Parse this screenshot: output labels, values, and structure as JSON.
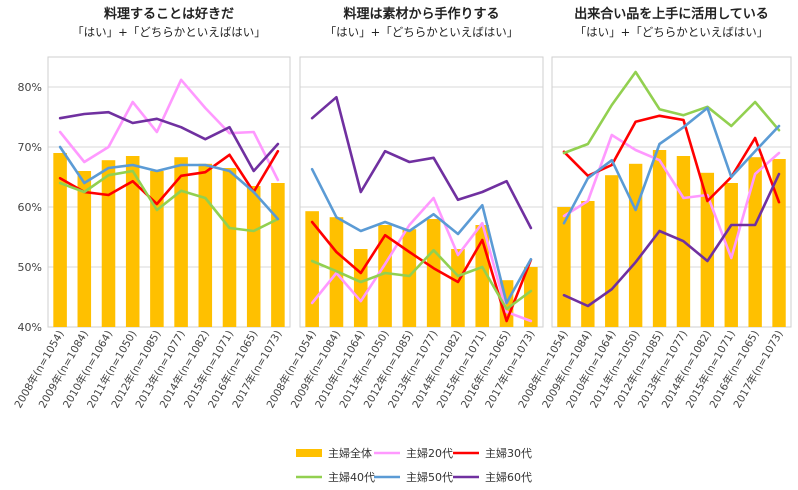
{
  "categories": [
    "2008年(n=1054)",
    "2009年(n=1084)",
    "2010年(n=1064)",
    "2011年(n=1050)",
    "2012年(n=1085)",
    "2013年(n=1077)",
    "2014年(n=1082)",
    "2015年(n=1071)",
    "2016年(n=1065)",
    "2017年(n=1073)"
  ],
  "y_ticks": [
    "40%",
    "50%",
    "60%",
    "70%",
    "80%"
  ],
  "colors": {
    "主婦全体": "#FFC000",
    "主婦20代": "#FF99FF",
    "主婦30代": "#FF0000",
    "主婦40代": "#92D050",
    "主婦50代": "#5B9BD5",
    "主婦60代": "#7030A0"
  },
  "legend": [
    "主婦全体",
    "主婦20代",
    "主婦30代",
    "主婦40代",
    "主婦50代",
    "主婦60代"
  ],
  "chart_data": [
    {
      "type": "bar+line",
      "title": "料理することは好きだ",
      "subtitle": "「はい」+「どちらかといえばはい」",
      "ylim": [
        40,
        85
      ],
      "series": [
        {
          "name": "主婦全体",
          "kind": "bar",
          "values": [
            69.0,
            66.0,
            67.8,
            68.5,
            66.0,
            68.3,
            67.2,
            66.5,
            63.5,
            64.0
          ]
        },
        {
          "name": "主婦20代",
          "kind": "line",
          "values": [
            72.5,
            67.5,
            70.0,
            77.5,
            72.5,
            81.2,
            76.5,
            72.3,
            72.5,
            64.5
          ]
        },
        {
          "name": "主婦30代",
          "kind": "line",
          "values": [
            64.8,
            62.5,
            62.0,
            64.3,
            60.5,
            65.2,
            65.8,
            68.7,
            62.5,
            69.3
          ]
        },
        {
          "name": "主婦40代",
          "kind": "line",
          "values": [
            64.0,
            62.5,
            65.3,
            66.0,
            59.5,
            62.7,
            61.5,
            56.5,
            56.0,
            58.0
          ]
        },
        {
          "name": "主婦50代",
          "kind": "line",
          "values": [
            70.0,
            64.0,
            66.5,
            67.0,
            66.0,
            67.0,
            67.0,
            66.0,
            62.5,
            58.0
          ]
        },
        {
          "name": "主婦60代",
          "kind": "line",
          "values": [
            74.8,
            75.5,
            75.8,
            74.0,
            74.7,
            73.3,
            71.3,
            73.3,
            66.0,
            70.5
          ]
        }
      ]
    },
    {
      "type": "bar+line",
      "title": "料理は素材から手作りする",
      "subtitle": "「はい」+「どちらかといえばはい」",
      "ylim": [
        40,
        85
      ],
      "series": [
        {
          "name": "主婦全体",
          "kind": "bar",
          "values": [
            59.3,
            58.3,
            53.0,
            57.0,
            56.3,
            58.0,
            53.0,
            57.0,
            47.8,
            50.0
          ]
        },
        {
          "name": "主婦20代",
          "kind": "line",
          "values": [
            44.0,
            49.0,
            44.3,
            50.5,
            57.0,
            61.5,
            52.0,
            57.3,
            42.5,
            41.0
          ]
        },
        {
          "name": "主婦30代",
          "kind": "line",
          "values": [
            57.5,
            52.5,
            49.0,
            55.3,
            52.5,
            49.8,
            47.5,
            54.5,
            41.0,
            51.2
          ]
        },
        {
          "name": "主婦40代",
          "kind": "line",
          "values": [
            51.0,
            49.3,
            47.5,
            49.0,
            48.5,
            52.8,
            48.5,
            50.0,
            43.0,
            46.0
          ]
        },
        {
          "name": "主婦50代",
          "kind": "line",
          "values": [
            66.3,
            58.3,
            56.0,
            57.5,
            56.0,
            58.8,
            55.5,
            60.3,
            44.0,
            51.3
          ]
        },
        {
          "name": "主婦60代",
          "kind": "line",
          "values": [
            74.8,
            78.3,
            62.5,
            69.3,
            67.5,
            68.2,
            61.2,
            62.5,
            64.3,
            56.5
          ]
        }
      ]
    },
    {
      "type": "bar+line",
      "title": "出来合い品を上手に活用している",
      "subtitle": "「はい」+「どちらかといえばはい」",
      "ylim": [
        40,
        85
      ],
      "series": [
        {
          "name": "主婦全体",
          "kind": "bar",
          "values": [
            60.0,
            61.0,
            65.3,
            67.2,
            69.5,
            68.5,
            65.7,
            64.0,
            68.3,
            68.0
          ]
        },
        {
          "name": "主婦20代",
          "kind": "line",
          "values": [
            58.5,
            61.0,
            72.0,
            69.5,
            67.8,
            61.5,
            62.0,
            51.5,
            65.5,
            69.0
          ]
        },
        {
          "name": "主婦30代",
          "kind": "line",
          "values": [
            69.2,
            65.2,
            67.0,
            74.2,
            75.2,
            74.5,
            61.0,
            65.0,
            71.5,
            60.8
          ]
        },
        {
          "name": "主婦40代",
          "kind": "line",
          "values": [
            69.0,
            70.5,
            77.0,
            82.5,
            76.3,
            75.3,
            76.7,
            73.5,
            77.5,
            72.8
          ]
        },
        {
          "name": "主婦50代",
          "kind": "line",
          "values": [
            57.3,
            64.8,
            67.8,
            59.5,
            70.5,
            73.3,
            76.5,
            65.0,
            69.3,
            73.5
          ]
        },
        {
          "name": "主婦60代",
          "kind": "line",
          "values": [
            45.3,
            43.5,
            46.3,
            50.8,
            56.0,
            54.3,
            51.0,
            57.0,
            57.0,
            65.5
          ]
        }
      ]
    }
  ]
}
